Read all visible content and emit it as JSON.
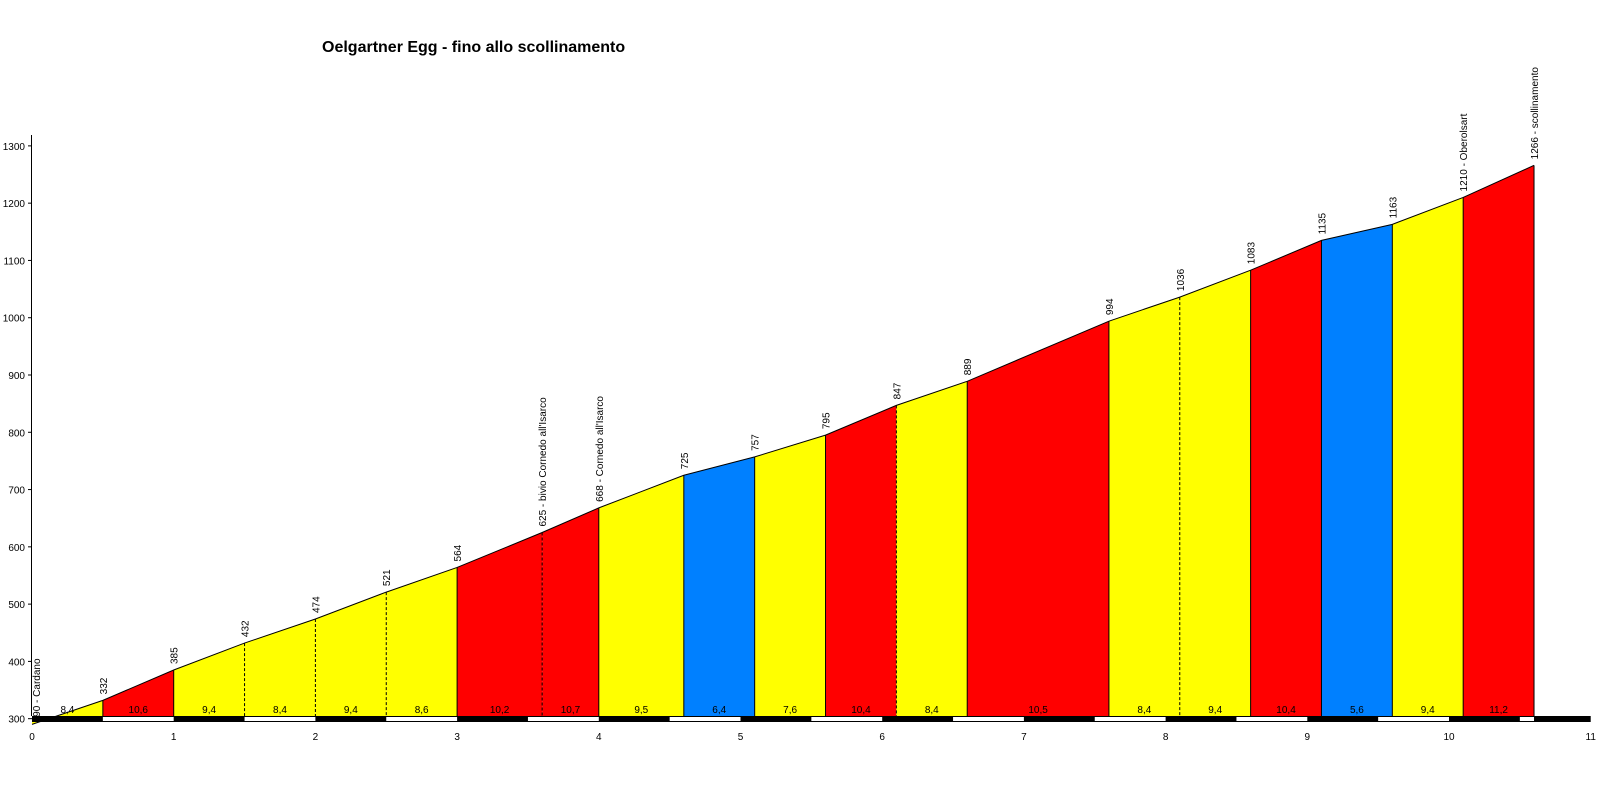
{
  "chart_data": {
    "type": "area",
    "title": "Oelgartner Egg - fino allo scollinamento",
    "xlabel": "",
    "ylabel": "",
    "xlim": [
      0,
      11
    ],
    "ylim": [
      275,
      1300
    ],
    "x_ticks": [
      "0",
      "1",
      "2",
      "3",
      "4",
      "5",
      "6",
      "7",
      "8",
      "9",
      "10",
      "11"
    ],
    "y_ticks": [
      "300",
      "400",
      "500",
      "600",
      "700",
      "800",
      "900",
      "1000",
      "1100",
      "1200",
      "1300"
    ],
    "grid": false,
    "colors": {
      "red": "#ff0000",
      "yellow": "#ffff00",
      "blue": "#0080ff",
      "outline": "#000000"
    },
    "profile": [
      {
        "km": 0.0,
        "alt": 290
      },
      {
        "km": 0.5,
        "alt": 332
      },
      {
        "km": 1.0,
        "alt": 385
      },
      {
        "km": 1.5,
        "alt": 432
      },
      {
        "km": 2.0,
        "alt": 474
      },
      {
        "km": 2.5,
        "alt": 521
      },
      {
        "km": 3.0,
        "alt": 564
      },
      {
        "km": 3.6,
        "alt": 625
      },
      {
        "km": 4.0,
        "alt": 668
      },
      {
        "km": 4.6,
        "alt": 725
      },
      {
        "km": 5.1,
        "alt": 757
      },
      {
        "km": 5.6,
        "alt": 795
      },
      {
        "km": 6.1,
        "alt": 847
      },
      {
        "km": 6.6,
        "alt": 889
      },
      {
        "km": 7.6,
        "alt": 994
      },
      {
        "km": 8.1,
        "alt": 1036
      },
      {
        "km": 8.6,
        "alt": 1083
      },
      {
        "km": 9.1,
        "alt": 1135
      },
      {
        "km": 9.6,
        "alt": 1163
      },
      {
        "km": 10.1,
        "alt": 1210
      },
      {
        "km": 10.6,
        "alt": 1266
      }
    ],
    "point_labels": [
      "290 - Cardano",
      "332",
      "385",
      "432",
      "474",
      "521",
      "564",
      "625 - bivio Cornedo all'Isarco",
      "668 - Cornedo all'Isarco",
      "725",
      "757",
      "795",
      "847",
      "889",
      "994",
      "1036",
      "1083",
      "1135",
      "1163",
      "1210 - Oberolsart",
      "1266 - scollinamento"
    ],
    "segments": [
      {
        "gradient": "8,4",
        "color": "yellow",
        "solid_end": true
      },
      {
        "gradient": "10,6",
        "color": "red",
        "solid_end": true
      },
      {
        "gradient": "9,4",
        "color": "yellow",
        "solid_end": false
      },
      {
        "gradient": "8,4",
        "color": "yellow",
        "solid_end": false
      },
      {
        "gradient": "9,4",
        "color": "yellow",
        "solid_end": false
      },
      {
        "gradient": "8,6",
        "color": "yellow",
        "solid_end": true
      },
      {
        "gradient": "10,2",
        "color": "red",
        "solid_end": false
      },
      {
        "gradient": "10,7",
        "color": "red",
        "solid_end": true
      },
      {
        "gradient": "9,5",
        "color": "yellow",
        "solid_end": true
      },
      {
        "gradient": "6,4",
        "color": "blue",
        "solid_end": true
      },
      {
        "gradient": "7,6",
        "color": "yellow",
        "solid_end": true
      },
      {
        "gradient": "10,4",
        "color": "red",
        "solid_end": false
      },
      {
        "gradient": "8,4",
        "color": "yellow",
        "solid_end": true
      },
      {
        "gradient": "10,5",
        "color": "red",
        "solid_end": true
      },
      {
        "gradient": "8,4",
        "color": "yellow",
        "solid_end": false
      },
      {
        "gradient": "9,4",
        "color": "yellow",
        "solid_end": true
      },
      {
        "gradient": "10,4",
        "color": "red",
        "solid_end": true
      },
      {
        "gradient": "5,6",
        "color": "blue",
        "solid_end": true
      },
      {
        "gradient": "9,4",
        "color": "yellow",
        "solid_end": true
      },
      {
        "gradient": "11,2",
        "color": "red",
        "solid_end": true
      }
    ]
  }
}
